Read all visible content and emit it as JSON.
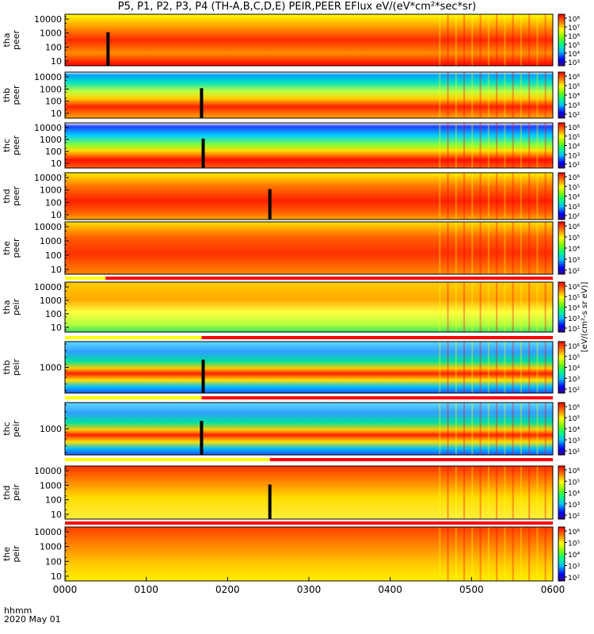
{
  "title": "P5, P1, P2, P3, P4 (TH-A,B,C,D,E) PEIR,PEER EFlux eV/(eV*cm²*sec*sr)",
  "time_label": "hhmm",
  "date_label": "2020 May 01",
  "colorbar_label": "[eV/(cm²-s sr eV)]",
  "colors": {
    "ion_sweep_bar": "#ff0000",
    "mode_bar_fast": "#ffff00",
    "mode_bar_slow": "#ff0000"
  },
  "chart_data": {
    "type": "heatmap",
    "time_axis": {
      "ticks": [
        "0000",
        "0100",
        "0200",
        "0300",
        "0400",
        "0500",
        "0600"
      ],
      "xlim_hours": [
        0,
        6
      ]
    },
    "panels": [
      {
        "probe": "tha",
        "label_top": "tha",
        "label_bottom": "peer",
        "yscale": "log",
        "yticks": [
          "10000",
          "1000",
          "100",
          "10"
        ],
        "colorbar_ticks": [
          "10⁸",
          "10⁷",
          "10⁶",
          "10⁵",
          "10⁴",
          "10³"
        ],
        "gap_hours": 0.53
      },
      {
        "probe": "thb",
        "label_top": "thb",
        "label_bottom": "peer",
        "yscale": "log",
        "yticks": [
          "10000",
          "1000",
          "100",
          "10"
        ],
        "colorbar_ticks": [
          "10⁶",
          "10⁵",
          "10⁴",
          "10³",
          "10²"
        ],
        "gap_hours": 1.68
      },
      {
        "probe": "thc",
        "label_top": "thc",
        "label_bottom": "peer",
        "yscale": "log",
        "yticks": [
          "10000",
          "1000",
          "100",
          "10"
        ],
        "colorbar_ticks": [
          "10⁶",
          "10⁵",
          "10⁴",
          "10³",
          "10²"
        ],
        "gap_hours": 1.7
      },
      {
        "probe": "thd",
        "label_top": "thd",
        "label_bottom": "peer",
        "yscale": "log",
        "yticks": [
          "10000",
          "1000",
          "100",
          "10"
        ],
        "colorbar_ticks": [
          "10⁶",
          "10⁵",
          "10⁴",
          "10³",
          "10²"
        ],
        "gap_hours": 2.52
      },
      {
        "probe": "the",
        "label_top": "the",
        "label_bottom": "peer",
        "yscale": "log",
        "yticks": [
          "10000",
          "1000",
          "100",
          "10"
        ],
        "colorbar_ticks": [
          "10⁶",
          "10⁵",
          "10⁴",
          "10³",
          "10²"
        ],
        "gap_hours": null
      },
      {
        "probe": "tha",
        "label_top": "tha",
        "label_bottom": "peir",
        "yscale": "log",
        "yticks": [
          "10000",
          "1000",
          "100",
          "10"
        ],
        "colorbar_ticks": [
          "10⁶",
          "10⁵",
          "10⁴",
          "10³",
          "10²"
        ],
        "gap_hours": null
      },
      {
        "probe": "thb",
        "label_top": "thb",
        "label_bottom": "peir",
        "yscale": "log",
        "yticks": [
          "1000"
        ],
        "colorbar_ticks": [
          "10⁶",
          "10⁵",
          "10⁴",
          "10³",
          "10²"
        ],
        "gap_hours": 1.7
      },
      {
        "probe": "thc",
        "label_top": "thc",
        "label_bottom": "peir",
        "yscale": "log",
        "yticks": [
          "1000"
        ],
        "colorbar_ticks": [
          "10⁶",
          "10⁵",
          "10⁴",
          "10³",
          "10²"
        ],
        "gap_hours": 1.68
      },
      {
        "probe": "thd",
        "label_top": "thd",
        "label_bottom": "peir",
        "yscale": "log",
        "yticks": [
          "10000",
          "1000",
          "100",
          "10"
        ],
        "colorbar_ticks": [
          "10⁶",
          "10⁵",
          "10⁴",
          "10³",
          "10²"
        ],
        "gap_hours": 2.52
      },
      {
        "probe": "the",
        "label_top": "the",
        "label_bottom": "peir",
        "yscale": "log",
        "yticks": [
          "10000",
          "1000",
          "100",
          "10"
        ],
        "colorbar_ticks": [
          "10⁶",
          "10⁵",
          "10⁴",
          "10³",
          "10²"
        ],
        "gap_hours": null
      }
    ],
    "mode_bars": [
      {
        "after_panel": 4,
        "fast_until_hours": 0.5
      },
      {
        "after_panel": 5,
        "fast_until_hours": 1.68
      },
      {
        "after_panel": 6,
        "fast_until_hours": 1.68
      },
      {
        "after_panel": 7,
        "fast_until_hours": 2.52
      },
      {
        "after_panel": 8,
        "fast_until_hours": 0
      }
    ]
  }
}
